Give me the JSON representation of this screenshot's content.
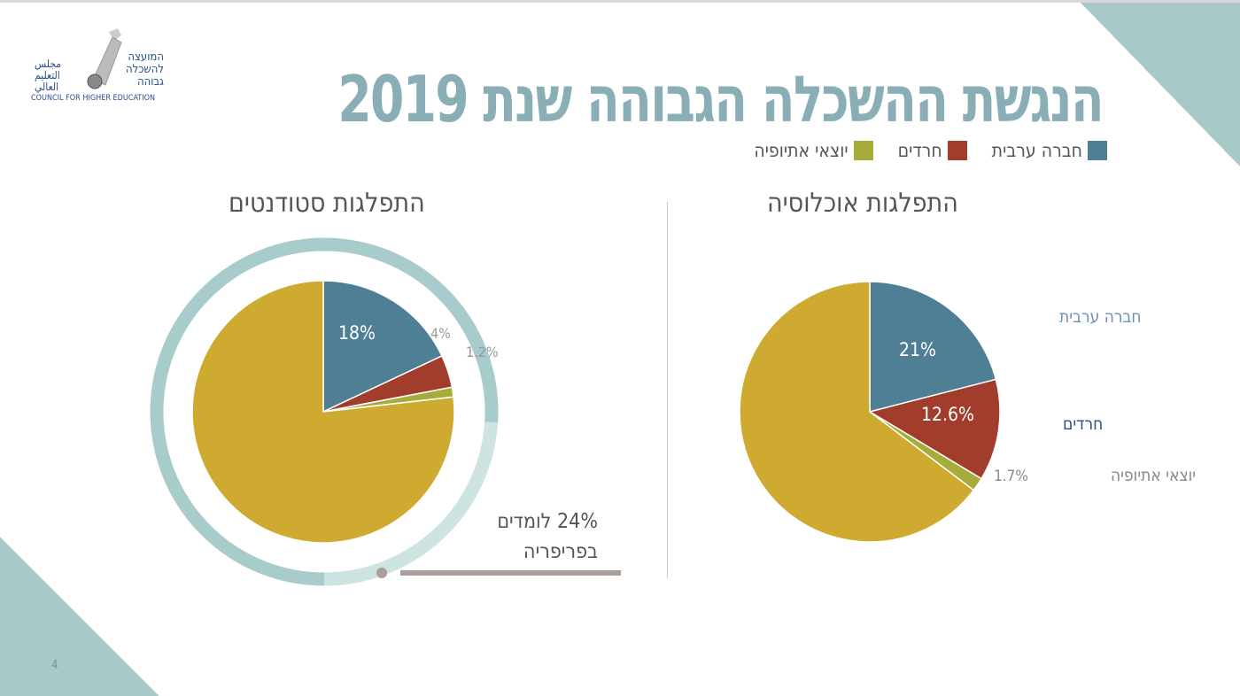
{
  "title": "הנגשת ההשכלה הגבוהה שנת 2019",
  "logo": {
    "he": "המועצה להשכלה גבוהה",
    "ar": "مجلس التعليم العالي",
    "en": "COUNCIL FOR HIGHER EDUCATION"
  },
  "legend": [
    {
      "label": "חברה ערבית",
      "color": "#4f7f95"
    },
    {
      "label": "חרדים",
      "color": "#a23d2b"
    },
    {
      "label": "יוצאי אתיופיה",
      "color": "#a6ac3a"
    }
  ],
  "periphery": {
    "line1": "24% לומדים",
    "line2": "בפריפריה",
    "value": 24,
    "ring_color": "#a8cbcb",
    "ring_highlight": "#cde4e2"
  },
  "page_number": "4",
  "chart_data": [
    {
      "type": "pie",
      "title": "התפלגות סטודנטים",
      "categories": [
        "חברה ערבית",
        "חרדים",
        "יוצאי אתיופיה",
        ""
      ],
      "values": [
        18,
        4,
        1.2,
        76.8
      ],
      "labels": [
        "18%",
        "4%",
        "1.2%",
        ""
      ],
      "colors": [
        "#4f7f95",
        "#a23d2b",
        "#a6ac3a",
        "#cfaa30"
      ]
    },
    {
      "type": "pie",
      "title": "התפלגות אוכלוסיה",
      "categories": [
        "חברה ערבית",
        "חרדים",
        "יוצאי אתיופיה",
        ""
      ],
      "values": [
        21,
        12.6,
        1.7,
        64.7
      ],
      "labels": [
        "21%",
        "12.6%",
        "1.7%",
        ""
      ],
      "colors": [
        "#4f7f95",
        "#a23d2b",
        "#a6ac3a",
        "#cfaa30"
      ]
    }
  ]
}
